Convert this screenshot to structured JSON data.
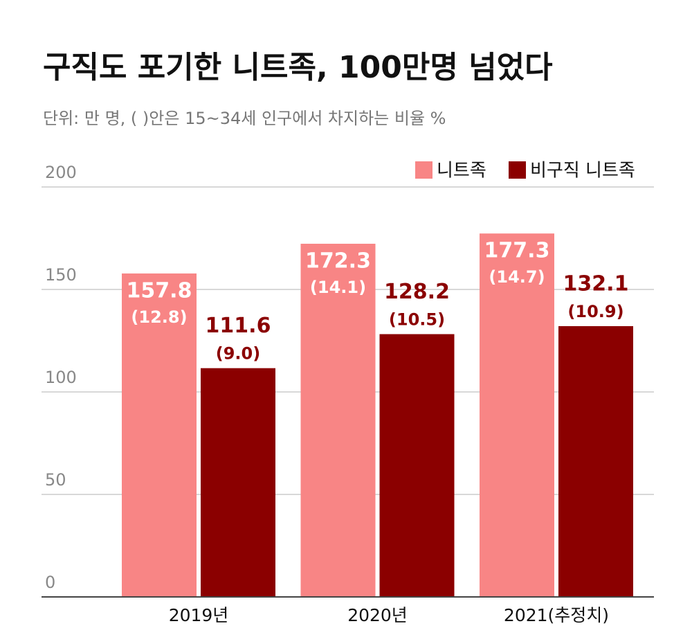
{
  "chart_data": {
    "type": "bar",
    "title": "구직도 포기한 니트족, 100만명 넘었다",
    "subtitle": "단위: 만 명, ( )안은 15~34세 인구에서 차지하는 비율 %",
    "categories": [
      "2019년",
      "2020년",
      "2021(추정치)"
    ],
    "series": [
      {
        "name": "니트족",
        "color": "#f88585",
        "values": [
          157.8,
          172.3,
          177.3
        ],
        "share_labels": [
          "(12.8)",
          "(14.1)",
          "(14.7)"
        ]
      },
      {
        "name": "비구직 니트족",
        "color": "#8b0000",
        "values": [
          111.6,
          128.2,
          132.1
        ],
        "share_labels": [
          "(9.0)",
          "(10.5)",
          "(10.9)"
        ]
      }
    ],
    "ylim": [
      0,
      200
    ],
    "yticks": [
      0,
      50,
      100,
      150,
      200
    ],
    "grid": true,
    "legend": "top-right"
  }
}
